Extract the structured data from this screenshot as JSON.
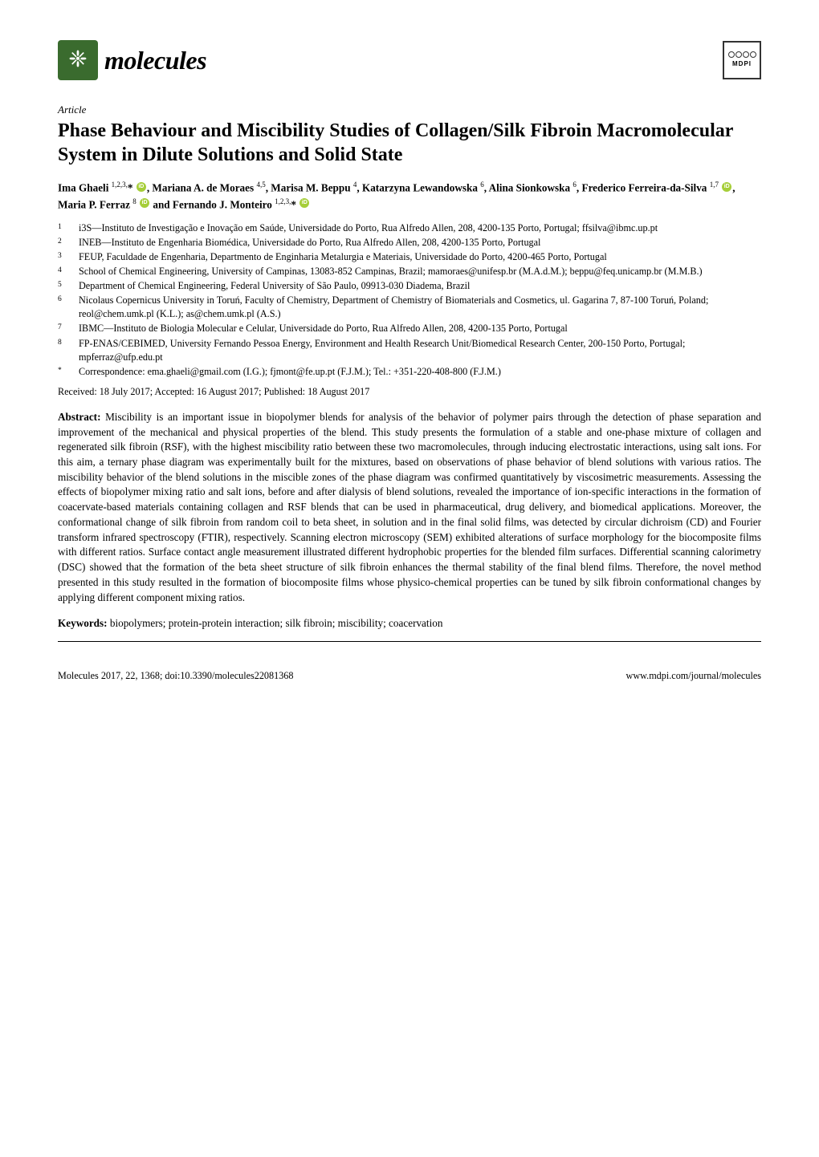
{
  "journal": {
    "name": "molecules",
    "logo_bg": "#3a6b2e",
    "logo_glyph": "❈"
  },
  "publisher": "MDPI",
  "article_type": "Article",
  "title": "Phase Behaviour and Miscibility Studies of Collagen/Silk Fibroin Macromolecular System in Dilute Solutions and Solid State",
  "authors_html": "Ima Ghaeli <sup>1,2,3,</sup>* <orcid></orcid>, Mariana A. de Moraes <sup>4,5</sup>, Marisa M. Beppu <sup>4</sup>, Katarzyna Lewandowska <sup>6</sup>, Alina Sionkowska <sup>6</sup>, Frederico Ferreira-da-Silva <sup>1,7</sup> <orcid></orcid>, Maria P. Ferraz <sup>8</sup> <orcid></orcid> and Fernando J. Monteiro <sup>1,2,3,</sup>* <orcid></orcid>",
  "affiliations": [
    {
      "num": "1",
      "text": "i3S—Instituto de Investigação e Inovação em Saúde, Universidade do Porto, Rua Alfredo Allen, 208, 4200-135 Porto, Portugal; ffsilva@ibmc.up.pt"
    },
    {
      "num": "2",
      "text": "INEB—Instituto de Engenharia Biomédica, Universidade do Porto, Rua Alfredo Allen, 208, 4200-135 Porto, Portugal"
    },
    {
      "num": "3",
      "text": "FEUP, Faculdade de Engenharia, Departmento de Enginharia Metalurgia e Materiais, Universidade do Porto, 4200-465 Porto, Portugal"
    },
    {
      "num": "4",
      "text": "School of Chemical Engineering, University of Campinas, 13083-852 Campinas, Brazil; mamoraes@unifesp.br (M.A.d.M.); beppu@feq.unicamp.br (M.M.B.)"
    },
    {
      "num": "5",
      "text": "Department of Chemical Engineering, Federal University of São Paulo, 09913-030 Diadema, Brazil"
    },
    {
      "num": "6",
      "text": "Nicolaus Copernicus University in Toruń, Faculty of Chemistry, Department of Chemistry of Biomaterials and Cosmetics, ul. Gagarina 7, 87-100 Toruń, Poland; reol@chem.umk.pl (K.L.); as@chem.umk.pl (A.S.)"
    },
    {
      "num": "7",
      "text": "IBMC—Instituto de Biologia Molecular e Celular, Universidade do Porto, Rua Alfredo Allen, 208, 4200-135 Porto, Portugal"
    },
    {
      "num": "8",
      "text": "FP-ENAS/CEBIMED, University Fernando Pessoa Energy, Environment and Health Research Unit/Biomedical Research Center, 200-150 Porto, Portugal; mpferraz@ufp.edu.pt"
    },
    {
      "num": "*",
      "text": "Correspondence: ema.ghaeli@gmail.com (I.G.); fjmont@fe.up.pt (F.J.M.); Tel.: +351-220-408-800 (F.J.M.)"
    }
  ],
  "dates": "Received: 18 July 2017; Accepted: 16 August 2017; Published: 18 August 2017",
  "abstract_label": "Abstract:",
  "abstract": "Miscibility is an important issue in biopolymer blends for analysis of the behavior of polymer pairs through the detection of phase separation and improvement of the mechanical and physical properties of the blend. This study presents the formulation of a stable and one-phase mixture of collagen and regenerated silk fibroin (RSF), with the highest miscibility ratio between these two macromolecules, through inducing electrostatic interactions, using salt ions. For this aim, a ternary phase diagram was experimentally built for the mixtures, based on observations of phase behavior of blend solutions with various ratios. The miscibility behavior of the blend solutions in the miscible zones of the phase diagram was confirmed quantitatively by viscosimetric measurements. Assessing the effects of biopolymer mixing ratio and salt ions, before and after dialysis of blend solutions, revealed the importance of ion-specific interactions in the formation of coacervate-based materials containing collagen and RSF blends that can be used in pharmaceutical, drug delivery, and biomedical applications. Moreover, the conformational change of silk fibroin from random coil to beta sheet, in solution and in the final solid films, was detected by circular dichroism (CD) and Fourier transform infrared spectroscopy (FTIR), respectively. Scanning electron microscopy (SEM) exhibited alterations of surface morphology for the biocomposite films with different ratios. Surface contact angle measurement illustrated different hydrophobic properties for the blended film surfaces. Differential scanning calorimetry (DSC) showed that the formation of the beta sheet structure of silk fibroin enhances the thermal stability of the final blend films. Therefore, the novel method presented in this study resulted in the formation of biocomposite films whose physico-chemical properties can be tuned by silk fibroin conformational changes by applying different component mixing ratios.",
  "keywords_label": "Keywords:",
  "keywords": "biopolymers; protein-protein interaction; silk fibroin; miscibility; coacervation",
  "footer": {
    "left": "Molecules 2017, 22, 1368; doi:10.3390/molecules22081368",
    "right": "www.mdpi.com/journal/molecules"
  }
}
